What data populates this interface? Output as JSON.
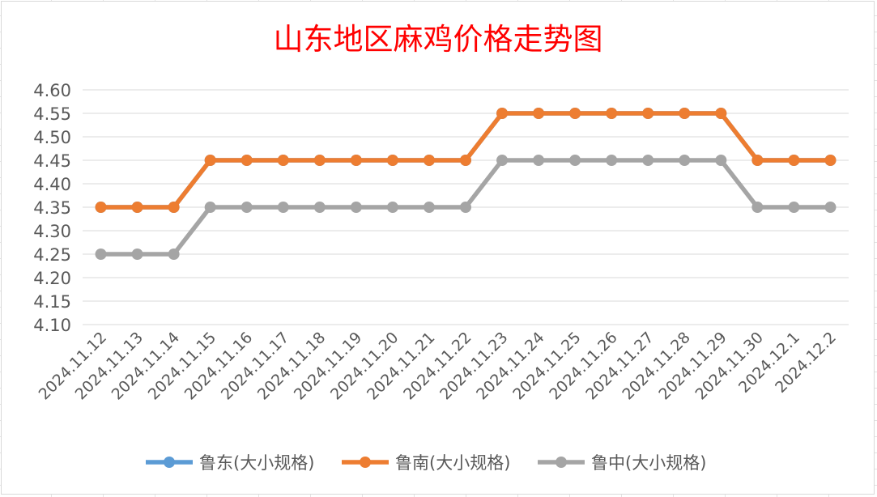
{
  "chart_data": {
    "type": "line",
    "title": "山东地区麻鸡价格走势图",
    "xlabel": "",
    "ylabel": "",
    "categories": [
      "2024.11.12",
      "2024.11.13",
      "2024.11.14",
      "2024.11.15",
      "2024.11.16",
      "2024.11.17",
      "2024.11.18",
      "2024.11.19",
      "2024.11.20",
      "2024.11.21",
      "2024.11.22",
      "2024.11.23",
      "2024.11.24",
      "2024.11.25",
      "2024.11.26",
      "2024.11.27",
      "2024.11.28",
      "2024.11.29",
      "2024.11.30",
      "2024.12.1",
      "2024.12.2"
    ],
    "y_ticks": [
      "4.10",
      "4.15",
      "4.20",
      "4.25",
      "4.30",
      "4.35",
      "4.40",
      "4.45",
      "4.50",
      "4.55",
      "4.60"
    ],
    "ylim": [
      4.1,
      4.6
    ],
    "grid": true,
    "legend_position": "bottom",
    "series": [
      {
        "name": "鲁东(大小规格)",
        "color": "#5b9bd5",
        "values": [
          4.35,
          4.35,
          4.35,
          4.45,
          4.45,
          4.45,
          4.45,
          4.45,
          4.45,
          4.45,
          4.45,
          4.55,
          4.55,
          4.55,
          4.55,
          4.55,
          4.55,
          4.55,
          4.45,
          4.45,
          4.45
        ]
      },
      {
        "name": "鲁南(大小规格)",
        "color": "#ed7d31",
        "values": [
          4.35,
          4.35,
          4.35,
          4.45,
          4.45,
          4.45,
          4.45,
          4.45,
          4.45,
          4.45,
          4.45,
          4.55,
          4.55,
          4.55,
          4.55,
          4.55,
          4.55,
          4.55,
          4.45,
          4.45,
          4.45
        ]
      },
      {
        "name": "鲁中(大小规格)",
        "color": "#a5a5a5",
        "values": [
          4.25,
          4.25,
          4.25,
          4.35,
          4.35,
          4.35,
          4.35,
          4.35,
          4.35,
          4.35,
          4.35,
          4.45,
          4.45,
          4.45,
          4.45,
          4.45,
          4.45,
          4.45,
          4.35,
          4.35,
          4.35
        ]
      }
    ],
    "title_color": "#ff0000"
  }
}
